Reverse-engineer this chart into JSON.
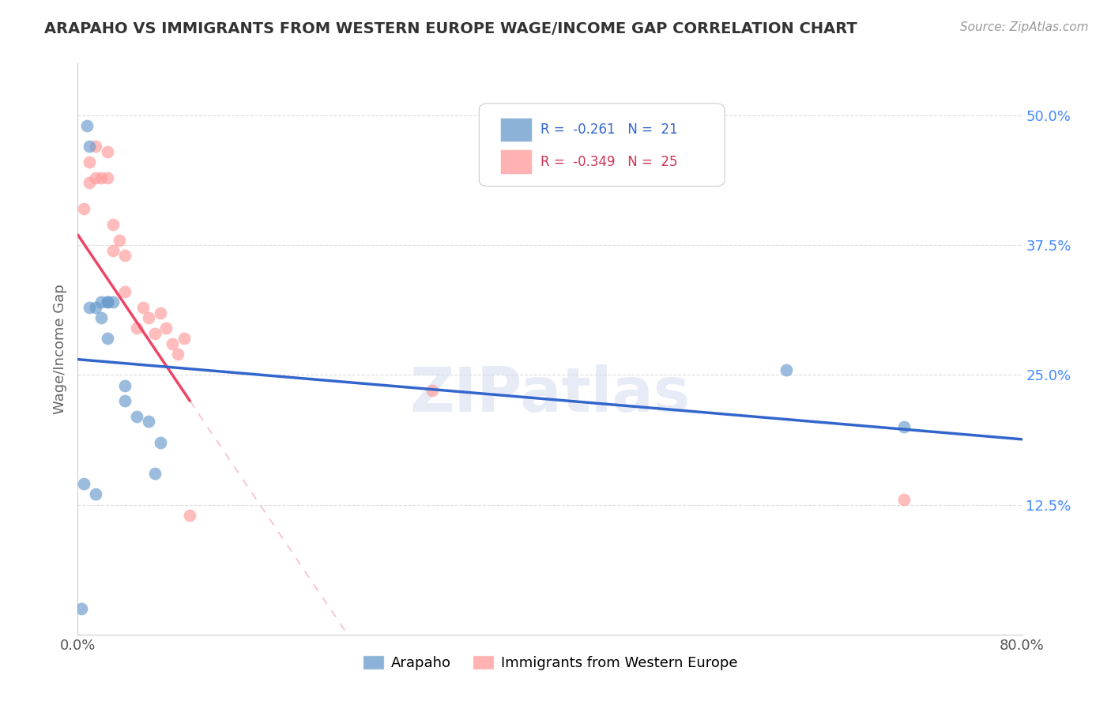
{
  "title": "ARAPAHO VS IMMIGRANTS FROM WESTERN EUROPE WAGE/INCOME GAP CORRELATION CHART",
  "source": "Source: ZipAtlas.com",
  "ylabel": "Wage/Income Gap",
  "xlim": [
    0.0,
    0.8
  ],
  "ylim": [
    0.0,
    0.55
  ],
  "xticks": [
    0.0,
    0.1,
    0.2,
    0.3,
    0.4,
    0.5,
    0.6,
    0.7,
    0.8
  ],
  "xticklabels": [
    "0.0%",
    "",
    "",
    "",
    "",
    "",
    "",
    "",
    "80.0%"
  ],
  "yticks_right": [
    0.125,
    0.25,
    0.375,
    0.5
  ],
  "ytick_labels_right": [
    "12.5%",
    "25.0%",
    "37.5%",
    "50.0%"
  ],
  "arapaho_color": "#6699cc",
  "immigrants_color": "#ff9999",
  "trend_arapaho_color": "#3366cc",
  "trend_immigrants_color": "#ee4466",
  "legend_line1": "R =  -0.261   N =  21",
  "legend_line2": "R =  -0.349   N =  25",
  "legend_color1": "#3366cc",
  "legend_color2": "#cc3355",
  "arapaho_x": [
    0.003,
    0.008,
    0.01,
    0.01,
    0.015,
    0.02,
    0.02,
    0.025,
    0.025,
    0.025,
    0.03,
    0.04,
    0.04,
    0.05,
    0.06,
    0.065,
    0.07,
    0.6,
    0.7,
    0.005,
    0.015
  ],
  "arapaho_y": [
    0.025,
    0.49,
    0.47,
    0.315,
    0.315,
    0.32,
    0.305,
    0.32,
    0.32,
    0.285,
    0.32,
    0.225,
    0.24,
    0.21,
    0.205,
    0.155,
    0.185,
    0.255,
    0.2,
    0.145,
    0.135
  ],
  "immigrants_x": [
    0.005,
    0.01,
    0.01,
    0.015,
    0.015,
    0.02,
    0.025,
    0.025,
    0.03,
    0.03,
    0.035,
    0.04,
    0.04,
    0.05,
    0.055,
    0.06,
    0.065,
    0.07,
    0.075,
    0.08,
    0.085,
    0.09,
    0.095,
    0.3,
    0.7
  ],
  "immigrants_y": [
    0.41,
    0.455,
    0.435,
    0.47,
    0.44,
    0.44,
    0.465,
    0.44,
    0.395,
    0.37,
    0.38,
    0.365,
    0.33,
    0.295,
    0.315,
    0.305,
    0.29,
    0.31,
    0.295,
    0.28,
    0.27,
    0.285,
    0.115,
    0.235,
    0.13
  ],
  "watermark": "ZIPatlas",
  "background_color": "#ffffff",
  "grid_color": "#dddddd",
  "trend_arapaho_x0": 0.0,
  "trend_arapaho_y0": 0.265,
  "trend_arapaho_x1": 0.8,
  "trend_arapaho_y1": 0.188,
  "trend_immigrants_x0": 0.0,
  "trend_immigrants_y0": 0.385,
  "trend_immigrants_x1": 0.095,
  "trend_immigrants_y1": 0.225
}
